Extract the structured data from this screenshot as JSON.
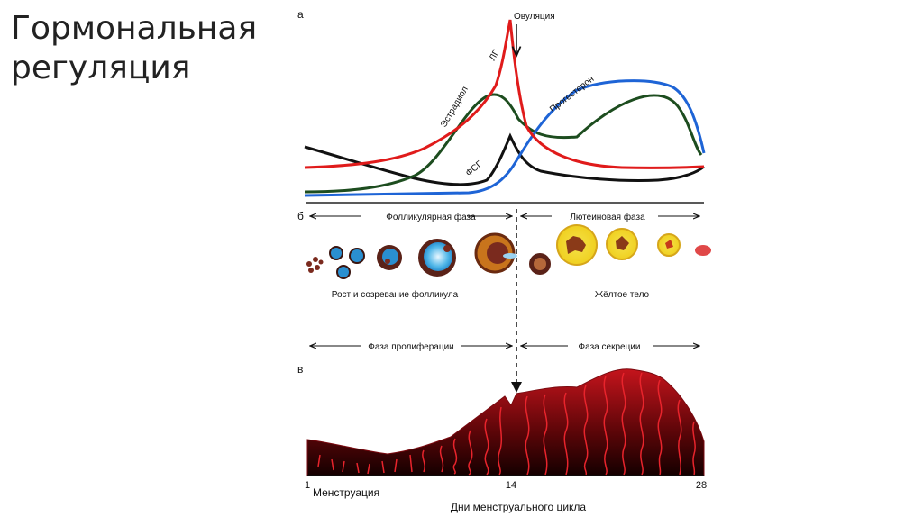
{
  "title": {
    "line1": "Гормональная",
    "line2": "регуляция"
  },
  "panels": {
    "a": {
      "label": "а"
    },
    "b": {
      "label": "б"
    },
    "c": {
      "label": "в"
    }
  },
  "hormones": {
    "ovulation": "Овуляция",
    "lh": "ЛГ",
    "estradiol": "Эстрадиол",
    "progesterone": "Прогестерон",
    "fsh": "ФСГ",
    "colors": {
      "lh": "#e01b1b",
      "estradiol": "#1d4d1f",
      "progesterone": "#1e64d6",
      "fsh": "#111111"
    }
  },
  "phases": {
    "follicular": "Фолликулярная фаза",
    "luteal": "Лютеиновая фаза",
    "proliferation": "Фаза пролиферации",
    "secretion": "Фаза секреции"
  },
  "ovary": {
    "follicle_growth": "Рост и созревание фолликула",
    "corpus_luteum": "Жёлтое тело"
  },
  "axis": {
    "day_start": "1",
    "day_mid": "14",
    "day_end": "28",
    "menstruation": "Менструация",
    "caption": "Дни менструального цикла"
  }
}
